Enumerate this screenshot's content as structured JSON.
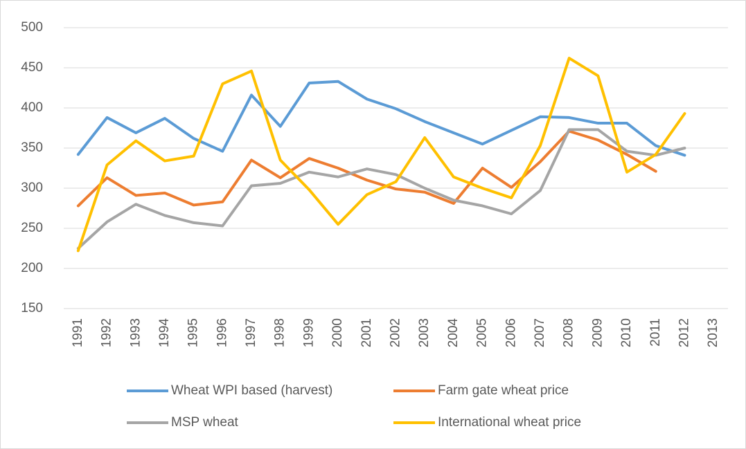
{
  "chart_data": {
    "type": "line",
    "categories": [
      "1991",
      "1992",
      "1993",
      "1994",
      "1995",
      "1996",
      "1997",
      "1998",
      "1999",
      "2000",
      "2001",
      "2002",
      "2003",
      "2004",
      "2005",
      "2006",
      "2007",
      "2008",
      "2009",
      "2010",
      "2011",
      "2012",
      "2013"
    ],
    "series": [
      {
        "name": "Wheat WPI based (harvest)",
        "color": "#5b9bd5",
        "values": [
          342,
          388,
          369,
          387,
          362,
          346,
          416,
          377,
          431,
          433,
          411,
          399,
          383,
          369,
          355,
          372,
          389,
          388,
          381,
          381,
          353,
          341,
          null
        ]
      },
      {
        "name": "Farm gate wheat price",
        "color": "#ed7d31",
        "values": [
          278,
          313,
          291,
          294,
          279,
          283,
          335,
          313,
          337,
          325,
          310,
          299,
          295,
          281,
          325,
          301,
          333,
          371,
          360,
          342,
          321,
          null,
          null
        ]
      },
      {
        "name": "MSP wheat",
        "color": "#a5a5a5",
        "values": [
          225,
          258,
          280,
          266,
          257,
          253,
          303,
          306,
          320,
          314,
          324,
          317,
          300,
          285,
          278,
          268,
          297,
          373,
          373,
          346,
          341,
          350,
          null
        ]
      },
      {
        "name": "International wheat price",
        "color": "#ffc000",
        "values": [
          222,
          329,
          359,
          334,
          340,
          430,
          446,
          335,
          298,
          255,
          292,
          308,
          363,
          314,
          300,
          288,
          353,
          462,
          440,
          320,
          342,
          393,
          null
        ]
      }
    ],
    "ylim": [
      150,
      500
    ],
    "yticks": [
      150,
      200,
      250,
      300,
      350,
      400,
      450,
      500
    ],
    "grid": true
  }
}
